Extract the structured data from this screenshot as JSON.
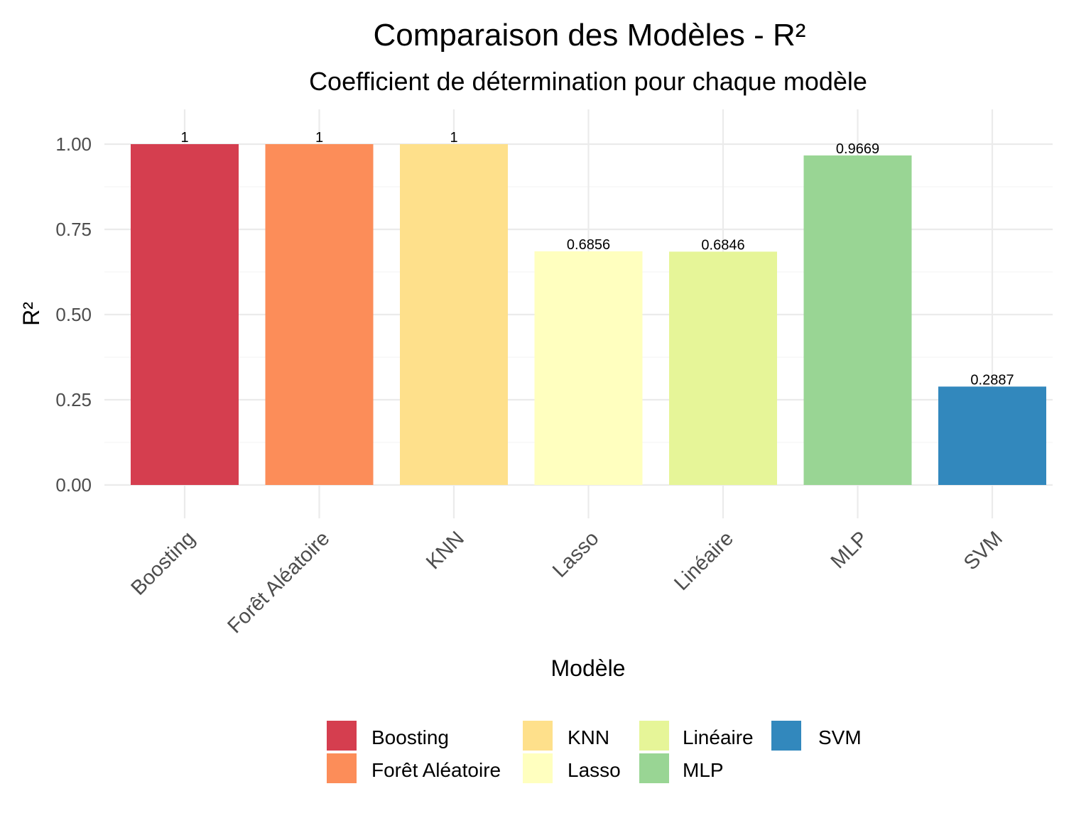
{
  "chart_data": {
    "type": "bar",
    "title": "Comparaison des Modèles - R²",
    "subtitle": "Coefficient de détermination pour chaque modèle",
    "xlabel": "Modèle",
    "ylabel": "R²",
    "ylim": [
      0,
      1
    ],
    "yticks": [
      "0.00",
      "0.25",
      "0.50",
      "0.75",
      "1.00"
    ],
    "ytick_values": [
      0,
      0.25,
      0.5,
      0.75,
      1.0
    ],
    "categories": [
      "Boosting",
      "Forêt Aléatoire",
      "KNN",
      "Lasso",
      "Linéaire",
      "MLP",
      "SVM"
    ],
    "values": [
      1,
      1,
      1,
      0.6856,
      0.6846,
      0.9669,
      0.2887
    ],
    "data_labels": [
      "1",
      "1",
      "1",
      "0.6856",
      "0.6846",
      "0.9669",
      "0.2887"
    ],
    "colors": [
      "#D53E4F",
      "#FC8D59",
      "#FEE08B",
      "#FFFFBF",
      "#E6F598",
      "#99D594",
      "#3288BD"
    ],
    "grid": true,
    "legend_position": "bottom",
    "legend": [
      {
        "label": "Boosting",
        "color": "#D53E4F"
      },
      {
        "label": "Forêt Aléatoire",
        "color": "#FC8D59"
      },
      {
        "label": "KNN",
        "color": "#FEE08B"
      },
      {
        "label": "Lasso",
        "color": "#FFFFBF"
      },
      {
        "label": "Linéaire",
        "color": "#E6F598"
      },
      {
        "label": "MLP",
        "color": "#99D594"
      },
      {
        "label": "SVM",
        "color": "#3288BD"
      }
    ]
  }
}
